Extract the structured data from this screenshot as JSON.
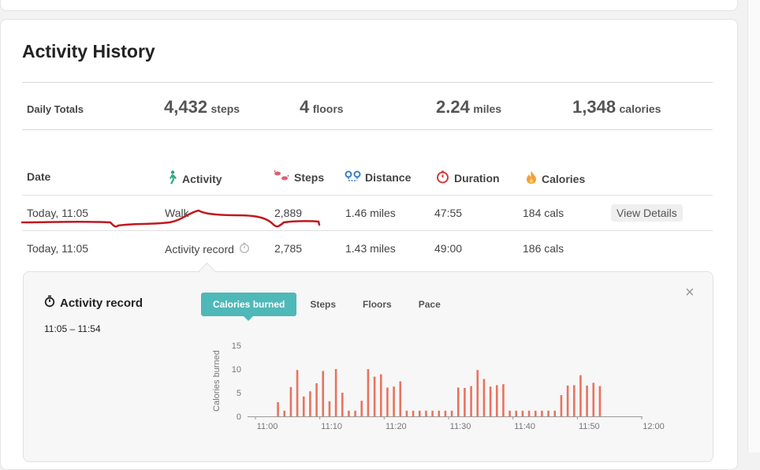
{
  "page": {
    "title": "Activity History"
  },
  "totals": {
    "label": "Daily Totals",
    "steps": {
      "value": "4,432",
      "unit": "steps"
    },
    "floors": {
      "value": "4",
      "unit": "floors"
    },
    "distance": {
      "value": "2.24",
      "unit": "miles"
    },
    "calories": {
      "value": "1,348",
      "unit": "calories"
    }
  },
  "table": {
    "headers": {
      "date": "Date",
      "activity": "Activity",
      "steps": "Steps",
      "distance": "Distance",
      "duration": "Duration",
      "calories": "Calories"
    },
    "rows": [
      {
        "date": "Today, 11:05",
        "activity": "Walk",
        "steps": "2,889",
        "distance": "1.46 miles",
        "duration": "47:55",
        "calories": "184 cals",
        "action": "View Details"
      },
      {
        "date": "Today, 11:05",
        "activity": "Activity record",
        "steps": "2,785",
        "distance": "1.43 miles",
        "duration": "49:00",
        "calories": "186 cals"
      }
    ]
  },
  "detail": {
    "title": "Activity record",
    "time_range": "11:05 – 11:54",
    "tabs": [
      "Calories burned",
      "Steps",
      "Floors",
      "Pace"
    ],
    "active_tab": "Calories burned",
    "close_symbol": "×"
  },
  "colors": {
    "accent": "#4fb8b8",
    "bar": "#e8735f",
    "annotation": "#c0181e"
  },
  "chart_data": {
    "type": "bar",
    "ylabel": "Calories burned",
    "xlabel": "",
    "ylim": [
      0,
      15
    ],
    "yticks": [
      0,
      5,
      10,
      15
    ],
    "xlim_minutes": [
      0,
      60
    ],
    "xticks": [
      "11:00",
      "11:10",
      "11:20",
      "11:30",
      "11:40",
      "11:50",
      "12:00"
    ],
    "minute_offsets": [
      3.5,
      4.5,
      5.5,
      6.5,
      7.5,
      8.5,
      9.5,
      10.5,
      11.5,
      12.5,
      13.5,
      14.5,
      15.5,
      16.5,
      17.5,
      18.5,
      19.5,
      20.5,
      21.5,
      22.5,
      23.5,
      24.5,
      25.5,
      26.5,
      27.5,
      28.5,
      29.5,
      30.5,
      31.5,
      32.5,
      33.5,
      34.5,
      35.5,
      36.5,
      37.5,
      38.5,
      39.5,
      40.5,
      41.5,
      42.5,
      43.5,
      44.5,
      45.5,
      46.5,
      47.5,
      48.5,
      49.5,
      50.5,
      51.5,
      52.5,
      53.5
    ],
    "values": [
      3,
      1.2,
      6.2,
      9.8,
      4.2,
      5.3,
      7,
      9.6,
      3.2,
      10,
      5,
      1.2,
      1.2,
      3.3,
      10,
      8.4,
      8.9,
      6.1,
      6.3,
      7.4,
      1.2,
      1.2,
      1.2,
      1.2,
      1.2,
      1.2,
      1.2,
      1.2,
      6.1,
      6,
      6.4,
      9.8,
      7.9,
      6.3,
      6.6,
      6.8,
      1.2,
      1.2,
      1.2,
      1.2,
      1.2,
      1.2,
      1.2,
      1.2,
      4.5,
      6.5,
      6.6,
      8.7,
      6.5,
      7.1,
      6.4
    ]
  }
}
